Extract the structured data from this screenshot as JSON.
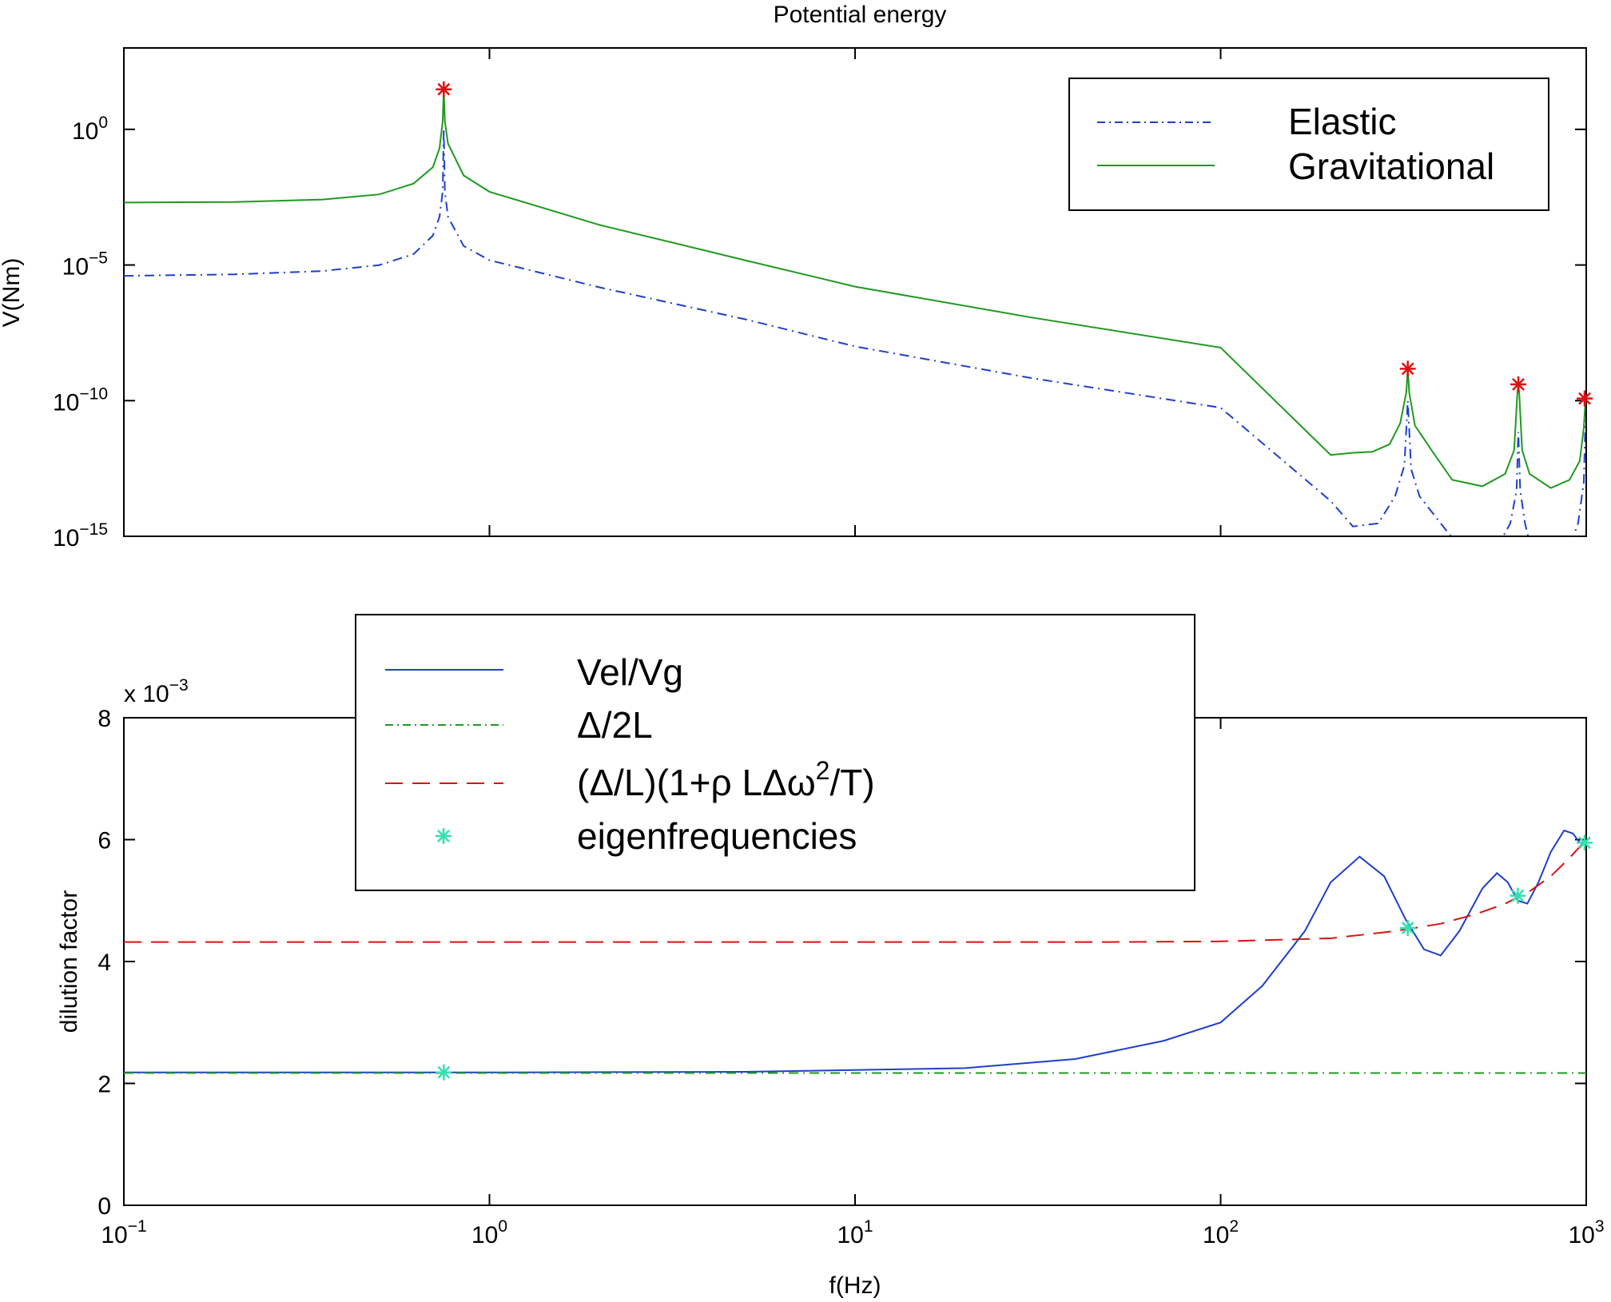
{
  "chart_data": [
    {
      "type": "line",
      "title": "Potential energy",
      "xlabel": "",
      "ylabel": "V(Nm)",
      "xscale": "log",
      "yscale": "log",
      "xlim": [
        0.1,
        1000
      ],
      "ylim": [
        1e-15,
        1000.0
      ],
      "x_ticks": [
        0.1,
        1,
        10,
        100,
        1000
      ],
      "x_tick_labels_shown": false,
      "y_ticks": [
        {
          "base": "10",
          "exp": "0",
          "value": 1
        },
        {
          "base": "10",
          "exp": "−5",
          "value": 1e-05
        },
        {
          "base": "10",
          "exp": "−10",
          "value": 1e-10
        },
        {
          "base": "10",
          "exp": "−15",
          "value": 1e-15
        }
      ],
      "legend": {
        "position": "top-right",
        "entries": [
          "Elastic",
          "Gravitational"
        ]
      },
      "grid": false,
      "series": [
        {
          "name": "Elastic",
          "style": "dash-dot",
          "color": "#1f3fcc",
          "points": [
            [
              0.1,
              4e-06
            ],
            [
              0.2,
              4.5e-06
            ],
            [
              0.35,
              6e-06
            ],
            [
              0.5,
              1e-05
            ],
            [
              0.62,
              2.5e-05
            ],
            [
              0.7,
              0.00012
            ],
            [
              0.73,
              0.0006
            ],
            [
              0.745,
              0.005
            ],
            [
              0.75,
              1
            ],
            [
              0.755,
              0.005
            ],
            [
              0.77,
              0.0006
            ],
            [
              0.85,
              5e-05
            ],
            [
              1,
              1.5e-05
            ],
            [
              2,
              1.5e-06
            ],
            [
              5,
              1e-07
            ],
            [
              10,
              1e-08
            ],
            [
              30,
              7e-10
            ],
            [
              100,
              5.5e-11
            ],
            [
              200,
              2e-14
            ],
            [
              230,
              2.3e-15
            ],
            [
              270,
              3e-15
            ],
            [
              300,
              3e-14
            ],
            [
              318,
              4e-13
            ],
            [
              325,
              1e-10
            ],
            [
              332,
              3e-13
            ],
            [
              350,
              3e-14
            ],
            [
              400,
              3e-15
            ],
            [
              440,
              6e-16
            ],
            [
              580,
              6e-16
            ],
            [
              620,
              3e-15
            ],
            [
              645,
              5e-14
            ],
            [
              652,
              7e-12
            ],
            [
              660,
              5e-14
            ],
            [
              680,
              3e-15
            ],
            [
              700,
              6e-16
            ],
            [
              910,
              6e-16
            ],
            [
              950,
              3e-15
            ],
            [
              985,
              1e-13
            ],
            [
              995,
              2e-11
            ]
          ]
        },
        {
          "name": "Gravitational",
          "style": "solid",
          "color": "#1f9a1f",
          "points": [
            [
              0.1,
              0.002
            ],
            [
              0.2,
              0.0021
            ],
            [
              0.35,
              0.0026
            ],
            [
              0.5,
              0.004
            ],
            [
              0.62,
              0.01
            ],
            [
              0.7,
              0.04
            ],
            [
              0.73,
              0.2
            ],
            [
              0.745,
              2
            ],
            [
              0.75,
              30
            ],
            [
              0.755,
              2
            ],
            [
              0.77,
              0.3
            ],
            [
              0.85,
              0.02
            ],
            [
              1,
              0.005
            ],
            [
              2,
              0.0003
            ],
            [
              5,
              1.5e-05
            ],
            [
              10,
              1.6e-06
            ],
            [
              30,
              1.2e-07
            ],
            [
              100,
              9e-09
            ],
            [
              200,
              1e-12
            ],
            [
              230,
              1.2e-12
            ],
            [
              260,
              1.3e-12
            ],
            [
              290,
              2.5e-12
            ],
            [
              310,
              1.5e-11
            ],
            [
              322,
              2e-10
            ],
            [
              325,
              1.5e-09
            ],
            [
              328,
              2e-10
            ],
            [
              340,
              1.2e-11
            ],
            [
              380,
              1.3e-12
            ],
            [
              430,
              1.2e-13
            ],
            [
              520,
              7e-14
            ],
            [
              600,
              2e-13
            ],
            [
              635,
              1.5e-12
            ],
            [
              648,
              1.8e-10
            ],
            [
              652,
              4e-10
            ],
            [
              656,
              1.8e-10
            ],
            [
              668,
              1.5e-12
            ],
            [
              700,
              2e-13
            ],
            [
              800,
              6e-14
            ],
            [
              900,
              1.2e-13
            ],
            [
              960,
              6e-13
            ],
            [
              985,
              1e-11
            ],
            [
              995,
              1e-10
            ],
            [
              1000,
              1.6e-10
            ]
          ]
        },
        {
          "name": "peaks",
          "style": "marker",
          "color": "#dd1111",
          "points": [
            [
              0.75,
              30
            ],
            [
              325,
              1.5e-09
            ],
            [
              652,
              4e-10
            ],
            [
              990,
              1.2e-10
            ]
          ]
        }
      ]
    },
    {
      "type": "line",
      "title": "",
      "xlabel": "f(Hz)",
      "ylabel": "dilution factor",
      "xscale": "log",
      "yscale": "linear",
      "scale_note": "x 10",
      "scale_exp": "−3",
      "xlim": [
        0.1,
        1000
      ],
      "ylim": [
        0,
        8
      ],
      "x_ticks": [
        {
          "base": "10",
          "exp": "−1",
          "value": 0.1
        },
        {
          "base": "10",
          "exp": "0",
          "value": 1
        },
        {
          "base": "10",
          "exp": "1",
          "value": 10
        },
        {
          "base": "10",
          "exp": "2",
          "value": 100
        },
        {
          "base": "10",
          "exp": "3",
          "value": 1000
        }
      ],
      "y_ticks": [
        "0",
        "2",
        "4",
        "6",
        "8"
      ],
      "legend": {
        "position": "top-left",
        "entries": [
          {
            "label": "Vel/Vg"
          },
          {
            "label": "Δ/2L"
          },
          {
            "label_main": "(Δ/L)(1+ρ LΔω",
            "label_sup": "2",
            "label_end": "/T)"
          },
          {
            "label": "eigenfrequencies"
          }
        ]
      },
      "grid": false,
      "series": [
        {
          "name": "Vel/Vg",
          "style": "solid",
          "color": "#1f3fcc",
          "points": [
            [
              0.1,
              2.18
            ],
            [
              1,
              2.18
            ],
            [
              5,
              2.19
            ],
            [
              20,
              2.25
            ],
            [
              40,
              2.4
            ],
            [
              70,
              2.7
            ],
            [
              100,
              3.0
            ],
            [
              130,
              3.6
            ],
            [
              170,
              4.5
            ],
            [
              200,
              5.3
            ],
            [
              240,
              5.72
            ],
            [
              280,
              5.4
            ],
            [
              320,
              4.7
            ],
            [
              360,
              4.2
            ],
            [
              400,
              4.1
            ],
            [
              450,
              4.5
            ],
            [
              520,
              5.2
            ],
            [
              570,
              5.45
            ],
            [
              610,
              5.3
            ],
            [
              650,
              5.0
            ],
            [
              690,
              4.95
            ],
            [
              740,
              5.3
            ],
            [
              800,
              5.8
            ],
            [
              870,
              6.15
            ],
            [
              920,
              6.1
            ],
            [
              960,
              5.95
            ],
            [
              1000,
              5.95
            ]
          ]
        },
        {
          "name": "Δ/2L",
          "style": "dash-dot",
          "color": "#1f9a1f",
          "points": [
            [
              0.1,
              2.17
            ],
            [
              1000,
              2.17
            ]
          ]
        },
        {
          "name": "(Δ/L)(1+ρ LΔω²/T)",
          "style": "dashed",
          "color": "#dd1111",
          "points": [
            [
              0.1,
              4.32
            ],
            [
              1,
              4.32
            ],
            [
              10,
              4.32
            ],
            [
              50,
              4.32
            ],
            [
              100,
              4.33
            ],
            [
              200,
              4.38
            ],
            [
              300,
              4.5
            ],
            [
              400,
              4.62
            ],
            [
              500,
              4.78
            ],
            [
              600,
              4.95
            ],
            [
              700,
              5.15
            ],
            [
              800,
              5.4
            ],
            [
              900,
              5.7
            ],
            [
              1000,
              6.0
            ]
          ]
        },
        {
          "name": "eigenfrequencies",
          "style": "marker",
          "color": "#33e0b0",
          "points": [
            [
              0.75,
              2.18
            ],
            [
              325,
              4.55
            ],
            [
              650,
              5.08
            ],
            [
              990,
              5.95
            ]
          ]
        }
      ]
    }
  ]
}
